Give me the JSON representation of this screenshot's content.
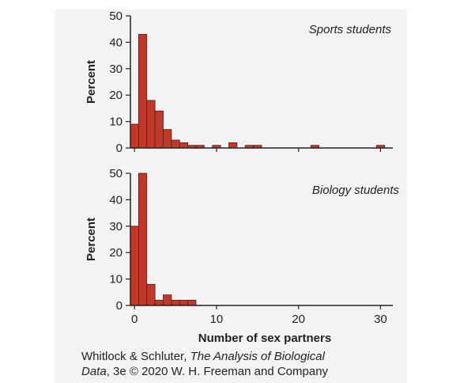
{
  "chart_data": [
    {
      "type": "bar",
      "title": "Sports students",
      "ylabel": "Percent",
      "xlabel": "",
      "ylim": [
        0,
        50
      ],
      "yticks": [
        0,
        10,
        20,
        30,
        40,
        50
      ],
      "xlim": [
        -0.5,
        31.5
      ],
      "bin_start": [
        0,
        1,
        2,
        3,
        4,
        5,
        6,
        7,
        8,
        9,
        10,
        11,
        12,
        13,
        14,
        15,
        16,
        17,
        18,
        19,
        20,
        21,
        22,
        23,
        24,
        25,
        26,
        27,
        28,
        29,
        30
      ],
      "values": [
        9,
        43,
        18,
        14,
        7,
        3,
        2,
        1,
        1,
        0,
        1,
        0,
        2,
        0,
        1,
        1,
        0,
        0,
        0,
        0,
        0,
        0,
        1,
        0,
        0,
        0,
        0,
        0,
        0,
        0,
        1
      ],
      "bar_color": "#c0392b"
    },
    {
      "type": "bar",
      "title": "Biology students",
      "ylabel": "Percent",
      "xlabel": "Number of sex partners",
      "ylim": [
        0,
        50
      ],
      "yticks": [
        0,
        10,
        20,
        30,
        40,
        50
      ],
      "xlim": [
        -0.5,
        31.5
      ],
      "xticks": [
        0,
        10,
        20,
        30
      ],
      "bin_start": [
        0,
        1,
        2,
        3,
        4,
        5,
        6,
        7
      ],
      "values": [
        30,
        50,
        8,
        2,
        4,
        2,
        2,
        2
      ],
      "bar_color": "#c0392b"
    }
  ],
  "credit": {
    "prefix": "Whitlock & Schluter, ",
    "book_title_line1": "The Analysis of Biological",
    "book_title_line2": "Data",
    "suffix": ", 3e © 2020 W. H. Freeman and Company"
  }
}
